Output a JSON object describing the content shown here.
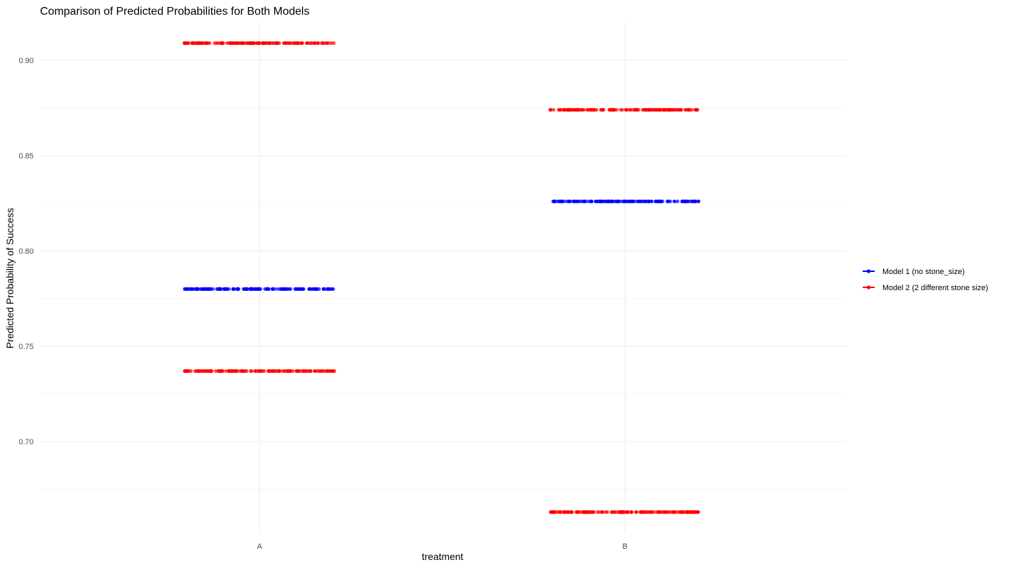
{
  "chart_data": {
    "type": "scatter",
    "title": "Comparison of Predicted Probabilities for Both Models",
    "xlabel": "treatment",
    "ylabel": "Predicted Probability of Success",
    "categories": [
      "A",
      "B"
    ],
    "ylim": [
      0.65,
      0.92
    ],
    "yticks": [
      0.7,
      0.75,
      0.8,
      0.85,
      0.9
    ],
    "ytick_labels": [
      "0.70",
      "0.75",
      "0.80",
      "0.85",
      "0.90"
    ],
    "grid": true,
    "legend_position": "right",
    "series": [
      {
        "name": "Model 1 (no stone_size)",
        "color": "#0000ff",
        "points": [
          {
            "category": "A",
            "y": 0.78
          },
          {
            "category": "B",
            "y": 0.826
          }
        ]
      },
      {
        "name": "Model 2 (2 different stone size)",
        "color": "#ff0000",
        "points": [
          {
            "category": "A",
            "y": 0.909
          },
          {
            "category": "A",
            "y": 0.737
          },
          {
            "category": "B",
            "y": 0.874
          },
          {
            "category": "B",
            "y": 0.663
          }
        ]
      }
    ]
  }
}
